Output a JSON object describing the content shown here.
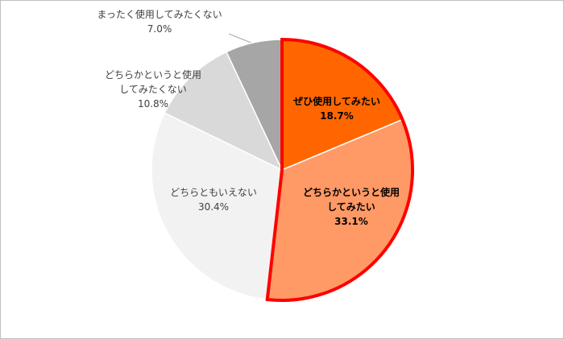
{
  "chart_data": {
    "type": "pie",
    "categories": [
      "ぜひ使用してみたい",
      "どちらかというと使用\nしてみたい",
      "どちらともいえない",
      "どちらかというと使用\nしてみたくない",
      "まったく使用してみたくない"
    ],
    "values": [
      18.7,
      33.1,
      30.4,
      10.8,
      7.0
    ],
    "value_labels": [
      "18.7%",
      "33.1%",
      "30.4%",
      "10.8%",
      "7.0%"
    ],
    "colors": [
      "#ff6600",
      "#ff9966",
      "#f2f2f2",
      "#d9d9d9",
      "#a6a6a6"
    ],
    "highlight": {
      "indices": [
        0,
        1
      ],
      "color": "#ff0000"
    }
  }
}
